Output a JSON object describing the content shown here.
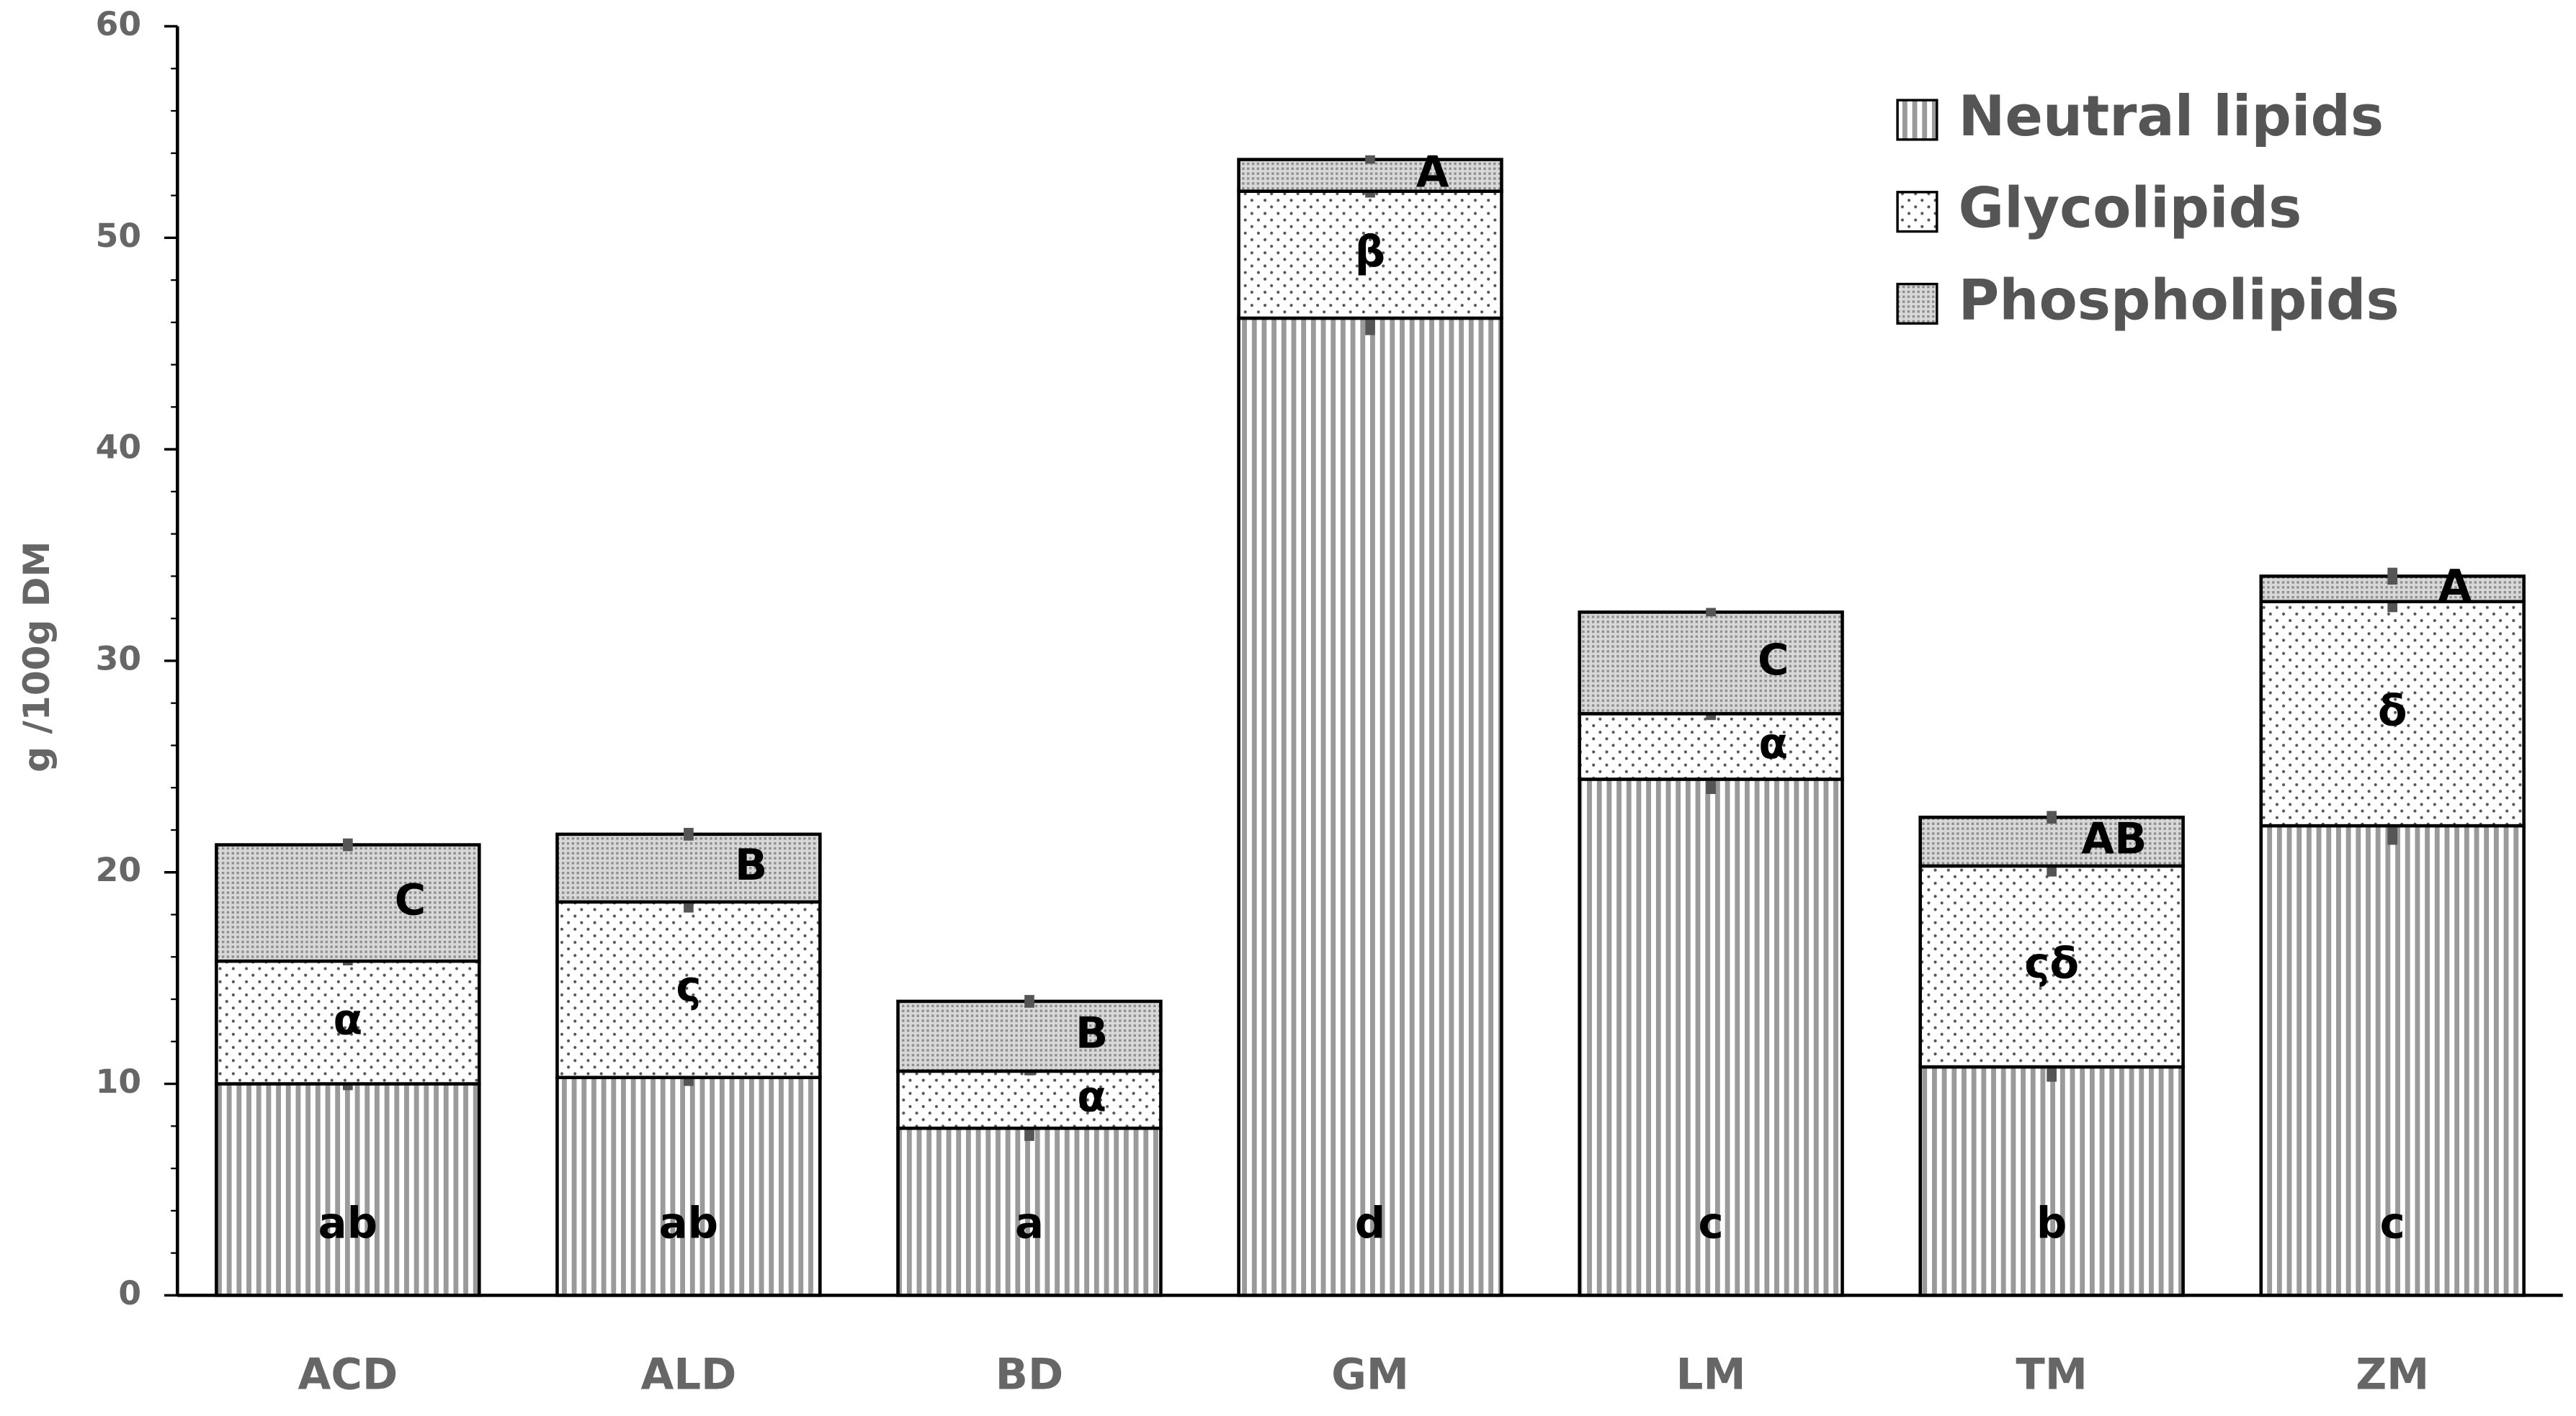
{
  "chart_data": {
    "type": "stacked-bar",
    "y_label": "g /100g DM",
    "categories": [
      "ACD",
      "ALD",
      "BD",
      "GM",
      "LM",
      "TM",
      "ZM"
    ],
    "ylim": [
      0,
      60
    ],
    "yticks": [
      0,
      10,
      20,
      30,
      40,
      50,
      60
    ],
    "legend": "top-right",
    "series": [
      {
        "name": "Neutral lipids",
        "color": "#9a9a9a",
        "pattern": "stripes",
        "values": [
          10.0,
          10.3,
          7.9,
          46.2,
          24.4,
          10.8,
          22.2
        ],
        "errors": [
          0.3,
          0.4,
          0.6,
          0.8,
          0.7,
          0.7,
          0.9
        ],
        "letters": [
          "ab",
          "ab",
          "a",
          "d",
          "c",
          "b",
          "c"
        ]
      },
      {
        "name": "Glycolipids",
        "color": "#555555",
        "pattern": "dots",
        "values": [
          5.8,
          8.3,
          2.7,
          6.0,
          3.1,
          9.5,
          10.6
        ],
        "errors": [
          0.2,
          0.5,
          0.2,
          0.3,
          0.3,
          0.5,
          0.5
        ],
        "letters": [
          "α",
          "ς",
          "α",
          "β",
          "α",
          "ςδ",
          "δ"
        ]
      },
      {
        "name": "Phospholipids",
        "color": "#b0b0b0",
        "pattern": "dense",
        "values": [
          5.5,
          3.2,
          3.3,
          1.5,
          4.8,
          2.3,
          1.2
        ],
        "errors": [
          0.3,
          0.3,
          0.3,
          0.2,
          0.2,
          0.3,
          0.4
        ],
        "letters": [
          "C",
          "B",
          "B",
          "A",
          "C",
          "AB",
          "A"
        ]
      }
    ]
  }
}
